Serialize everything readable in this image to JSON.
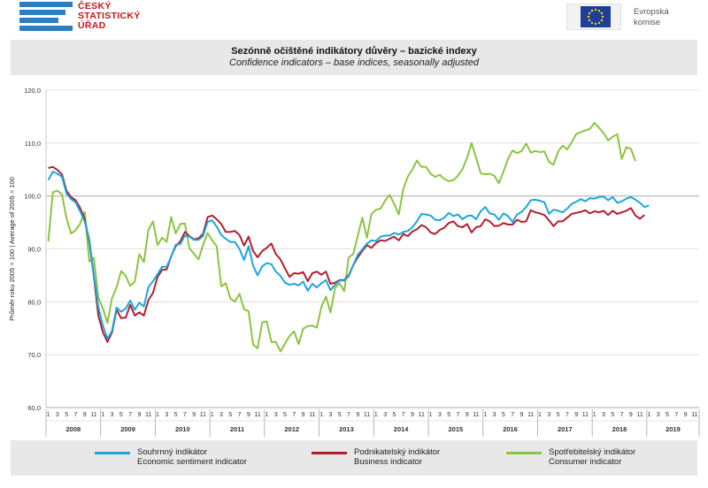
{
  "header": {
    "org_name_line1": "ČESKÝ",
    "org_name_line2": "STATISTICKÝ",
    "org_name_line3": "ÚŘAD",
    "ec_line1": "Evropská",
    "ec_line2": "komise"
  },
  "title_cz": "Sezónně očištěné indikátory důvěry – bazické indexy",
  "title_en": "Confidence indicators – base indices, seasonally adjusted",
  "colors": {
    "composite": "#1ca6dc",
    "business": "#b21f2d",
    "consumer": "#8cc440",
    "grid": "#d9d9d9",
    "ref_line": "#c8c8c8",
    "axis_text": "#333333",
    "brand_blue": "#2a7fc4",
    "brand_red": "#c4161c"
  },
  "chart_data": {
    "type": "line",
    "ylabel": "Průměr roku 2005 = 100 | Average of 2005 = 100",
    "ylim": [
      60,
      120
    ],
    "yticks": [
      "60,0",
      "70,0",
      "80,0",
      "90,0",
      "100,0",
      "110,0",
      "120,0"
    ],
    "reference_value": 100,
    "x_start": "2008-01",
    "month_labels": [
      "1",
      "3",
      "5",
      "7",
      "9",
      "11"
    ],
    "years": [
      "2008",
      "2009",
      "2010",
      "2011",
      "2012",
      "2013",
      "2014",
      "2015",
      "2016",
      "2017",
      "2018",
      "2019"
    ],
    "series": [
      {
        "name": "Souhrnný indikátor",
        "name_en": "Economic sentiment indicator",
        "values": [
          103,
          104.6,
          104.2,
          103.6,
          100.5,
          99.4,
          98.8,
          97.1,
          95.2,
          91.8,
          85,
          79,
          75.5,
          73,
          74.5,
          78.9,
          78.1,
          78.7,
          80.2,
          78.5,
          79.8,
          79.1,
          82.8,
          83.9,
          85.2,
          86.6,
          86.6,
          88.5,
          90.8,
          90.9,
          92.5,
          92.3,
          91.7,
          91.7,
          92.4,
          95.1,
          95.4,
          94.2,
          92.6,
          91.9,
          91.3,
          91.3,
          90,
          87.9,
          90.5,
          86.8,
          85,
          86.7,
          87.3,
          87.1,
          85.7,
          84.9,
          83.6,
          83.2,
          83.4,
          83.1,
          83.8,
          82.1,
          83.4,
          82.7,
          83.5,
          84.1,
          82.2,
          83.2,
          84,
          84,
          84.8,
          86.9,
          88.9,
          89.9,
          91,
          91.6,
          91.5,
          92.3,
          92.5,
          92.5,
          93,
          92.7,
          93.2,
          93.4,
          94.1,
          95.2,
          96.6,
          96.5,
          96.3,
          95.5,
          95.4,
          95.9,
          96.8,
          96.2,
          96.5,
          95.6,
          96.2,
          96.3,
          95.6,
          97.1,
          97.9,
          96.7,
          96.5,
          95.5,
          96.7,
          96.2,
          95.1,
          96.5,
          97,
          97.9,
          99.2,
          99.3,
          99.1,
          98.8,
          96.6,
          97.4,
          97.2,
          96.9,
          97.6,
          98.5,
          98.9,
          99.4,
          99,
          99.6,
          99.5,
          99.8,
          99.9,
          99.2,
          99.8,
          98.7,
          99,
          99.5,
          99.8,
          99.3,
          98.7,
          97.9,
          98.2
        ]
      },
      {
        "name": "Podnikatelský indikátor",
        "name_en": "Business indicator",
        "values": [
          105.3,
          105.5,
          104.9,
          104.1,
          101,
          99.8,
          99.2,
          97.7,
          95.7,
          91.4,
          84.8,
          77.4,
          74.2,
          72.4,
          74.2,
          78.5,
          76.9,
          77,
          79.4,
          77.4,
          78,
          77.4,
          80.3,
          81.7,
          84.7,
          86,
          86.1,
          88.6,
          90.5,
          91.4,
          93.2,
          92.4,
          91.8,
          92,
          92.8,
          96,
          96.3,
          95.6,
          94.7,
          93.2,
          93.2,
          93.4,
          92.6,
          90.6,
          92.3,
          89.6,
          88.4,
          89.6,
          90.2,
          91,
          89,
          88,
          86.3,
          84.7,
          85.4,
          85.3,
          85.6,
          83.9,
          85.4,
          85.7,
          85.1,
          85.7,
          83.4,
          83.6,
          84.1,
          84.1,
          85,
          86.9,
          88.4,
          89.6,
          90.7,
          90.2,
          91.1,
          91.6,
          91.5,
          91.9,
          92.3,
          91.6,
          92.8,
          92.4,
          93.3,
          93.7,
          94.5,
          94.1,
          93.1,
          92.8,
          93.6,
          94,
          94.9,
          95.2,
          94.3,
          94.1,
          94.7,
          93.1,
          94.1,
          94.3,
          95.6,
          95.2,
          94.3,
          94.4,
          94.9,
          94.6,
          94.6,
          95.5,
          95.1,
          95.2,
          97.3,
          96.9,
          96.7,
          96.4,
          95.4,
          94.3,
          95.2,
          95.2,
          95.9,
          96.6,
          96.8,
          97,
          97.3,
          96.7,
          97.1,
          96.9,
          97.2,
          96.4,
          97.2,
          96.6,
          96.9,
          97.2,
          97.7,
          96.3,
          95.7,
          96.4
        ]
      },
      {
        "name": "Spotřebitelský indikátor",
        "name_en": "Consumer indicator",
        "values": [
          91.4,
          100.7,
          101,
          100.3,
          95.8,
          92.9,
          93.5,
          94.8,
          97,
          87.6,
          88.3,
          80.8,
          78.7,
          76,
          80.7,
          82.7,
          85.8,
          84.9,
          83,
          83.8,
          89,
          87.5,
          93.6,
          95.2,
          90.7,
          92.1,
          91.3,
          96,
          92.9,
          94.7,
          94.8,
          90.1,
          89.1,
          88,
          90.7,
          93,
          91.6,
          90.5,
          82.9,
          83.5,
          80.6,
          80,
          81.5,
          78.6,
          78.2,
          71.9,
          71.2,
          76.1,
          76.3,
          72.4,
          72.4,
          70.6,
          72.1,
          73.5,
          74.4,
          72,
          74.9,
          75.4,
          75.5,
          75.1,
          79,
          81,
          78,
          82.6,
          83.5,
          82,
          88.4,
          89,
          92.5,
          95.9,
          92.1,
          96.6,
          97.4,
          97.6,
          99.1,
          100.2,
          98.5,
          96.5,
          101.3,
          103.7,
          105,
          106.7,
          105.5,
          105.5,
          104.2,
          103.6,
          104,
          103.2,
          102.8,
          103,
          103.8,
          105.1,
          107.2,
          110,
          107.2,
          104.3,
          104.1,
          104.2,
          103.8,
          102.4,
          104.6,
          107,
          108.6,
          108.1,
          108.5,
          109.9,
          108.2,
          108.5,
          108.3,
          108.4,
          106.5,
          105.9,
          108.4,
          109.5,
          108.8,
          110.2,
          111.7,
          112.1,
          112.4,
          112.7,
          113.8,
          112.9,
          111.9,
          110.5,
          111.2,
          111.7,
          107,
          109.2,
          108.9,
          106.6
        ]
      }
    ]
  }
}
